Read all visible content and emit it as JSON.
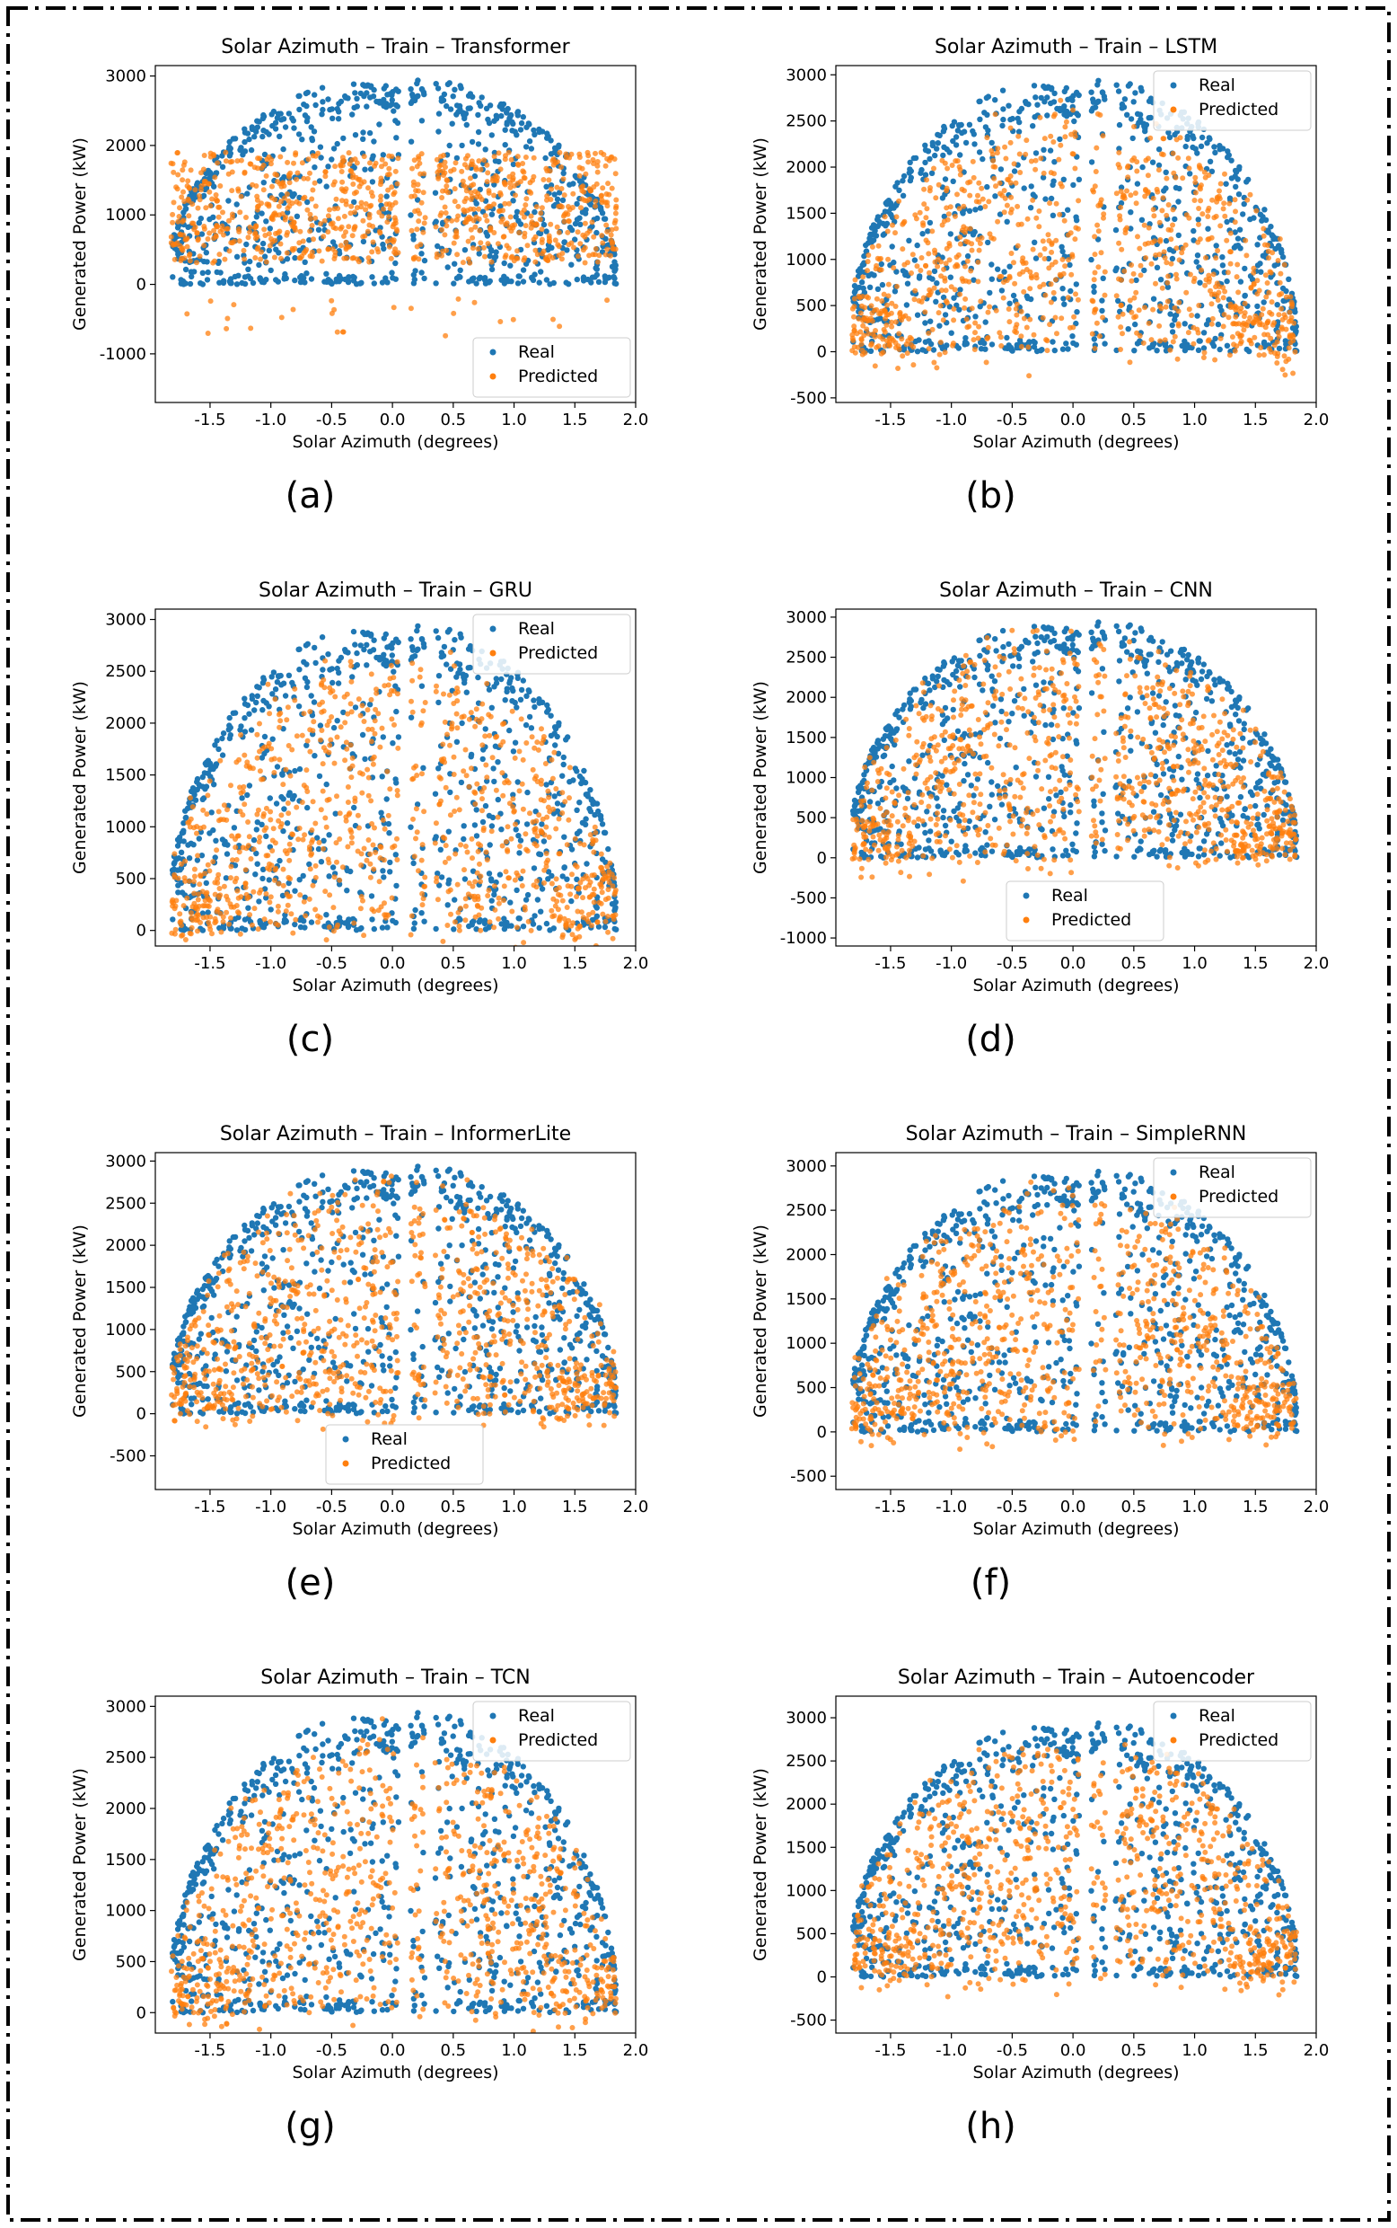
{
  "chart_data": [
    {
      "panel_label": "(a)",
      "type": "scatter",
      "title": "Solar Azimuth – Train – Transformer",
      "xlabel": "Solar Azimuth (degrees)",
      "ylabel": "Generated Power (kW)",
      "xlim": [
        -1.95,
        2.0
      ],
      "ylim": [
        -1700,
        3150
      ],
      "xticks": [
        "-1.5",
        "-1.0",
        "-0.5",
        "0.0",
        "0.5",
        "1.0",
        "1.5",
        "2.0"
      ],
      "xtick_values": [
        -1.5,
        -1.0,
        -0.5,
        0.0,
        0.5,
        1.0,
        1.5,
        2.0
      ],
      "yticks": [
        "-1000",
        "0",
        "1000",
        "2000",
        "3000"
      ],
      "ytick_values": [
        -1000,
        0,
        1000,
        2000,
        3000
      ],
      "legend_position": "lower-right",
      "series": [
        {
          "name": "Real",
          "color": "#1f77b4",
          "pattern": "real"
        },
        {
          "name": "Predicted",
          "color": "#ff7f0e",
          "pattern": "flat_band",
          "band": [
            300,
            1900
          ],
          "seed": 11
        }
      ]
    },
    {
      "panel_label": "(b)",
      "type": "scatter",
      "title": "Solar Azimuth – Train – LSTM",
      "xlabel": "Solar Azimuth (degrees)",
      "ylabel": "Generated Power (kW)",
      "xlim": [
        -1.95,
        2.0
      ],
      "ylim": [
        -550,
        3100
      ],
      "xticks": [
        "-1.5",
        "-1.0",
        "-0.5",
        "0.0",
        "0.5",
        "1.0",
        "1.5",
        "2.0"
      ],
      "xtick_values": [
        -1.5,
        -1.0,
        -0.5,
        0.0,
        0.5,
        1.0,
        1.5,
        2.0
      ],
      "yticks": [
        "-500",
        "0",
        "500",
        "1000",
        "1500",
        "2000",
        "2500",
        "3000"
      ],
      "ytick_values": [
        -500,
        0,
        500,
        1000,
        1500,
        2000,
        2500,
        3000
      ],
      "legend_position": "upper-right",
      "series": [
        {
          "name": "Real",
          "color": "#1f77b4",
          "pattern": "real"
        },
        {
          "name": "Predicted",
          "color": "#ff7f0e",
          "pattern": "dome",
          "scale": 0.85,
          "spread": 350,
          "seed": 12
        }
      ]
    },
    {
      "panel_label": "(c)",
      "type": "scatter",
      "title": "Solar Azimuth – Train – GRU",
      "xlabel": "Solar Azimuth (degrees)",
      "ylabel": "Generated Power (kW)",
      "xlim": [
        -1.95,
        2.0
      ],
      "ylim": [
        -150,
        3100
      ],
      "xticks": [
        "-1.5",
        "-1.0",
        "-0.5",
        "0.0",
        "0.5",
        "1.0",
        "1.5",
        "2.0"
      ],
      "xtick_values": [
        -1.5,
        -1.0,
        -0.5,
        0.0,
        0.5,
        1.0,
        1.5,
        2.0
      ],
      "yticks": [
        "0",
        "500",
        "1000",
        "1500",
        "2000",
        "2500",
        "3000"
      ],
      "ytick_values": [
        0,
        500,
        1000,
        1500,
        2000,
        2500,
        3000
      ],
      "legend_position": "upper-right",
      "series": [
        {
          "name": "Real",
          "color": "#1f77b4",
          "pattern": "real"
        },
        {
          "name": "Predicted",
          "color": "#ff7f0e",
          "pattern": "dome",
          "scale": 0.85,
          "spread": 300,
          "seed": 13
        }
      ]
    },
    {
      "panel_label": "(d)",
      "type": "scatter",
      "title": "Solar Azimuth – Train – CNN",
      "xlabel": "Solar Azimuth (degrees)",
      "ylabel": "Generated Power (kW)",
      "xlim": [
        -1.95,
        2.0
      ],
      "ylim": [
        -1100,
        3100
      ],
      "xticks": [
        "-1.5",
        "-1.0",
        "-0.5",
        "0.0",
        "0.5",
        "1.0",
        "1.5",
        "2.0"
      ],
      "xtick_values": [
        -1.5,
        -1.0,
        -0.5,
        0.0,
        0.5,
        1.0,
        1.5,
        2.0
      ],
      "yticks": [
        "-1000",
        "-500",
        "0",
        "500",
        "1000",
        "1500",
        "2000",
        "2500",
        "3000"
      ],
      "ytick_values": [
        -1000,
        -500,
        0,
        500,
        1000,
        1500,
        2000,
        2500,
        3000
      ],
      "legend_position": "lower-center",
      "series": [
        {
          "name": "Real",
          "color": "#1f77b4",
          "pattern": "real"
        },
        {
          "name": "Predicted",
          "color": "#ff7f0e",
          "pattern": "dome",
          "scale": 0.9,
          "spread": 450,
          "seed": 14
        }
      ]
    },
    {
      "panel_label": "(e)",
      "type": "scatter",
      "title": "Solar Azimuth – Train – InformerLite",
      "xlabel": "Solar Azimuth (degrees)",
      "ylabel": "Generated Power (kW)",
      "xlim": [
        -1.95,
        2.0
      ],
      "ylim": [
        -900,
        3100
      ],
      "xticks": [
        "-1.5",
        "-1.0",
        "-0.5",
        "0.0",
        "0.5",
        "1.0",
        "1.5",
        "2.0"
      ],
      "xtick_values": [
        -1.5,
        -1.0,
        -0.5,
        0.0,
        0.5,
        1.0,
        1.5,
        2.0
      ],
      "yticks": [
        "-500",
        "0",
        "500",
        "1000",
        "1500",
        "2000",
        "2500",
        "3000"
      ],
      "ytick_values": [
        -500,
        0,
        500,
        1000,
        1500,
        2000,
        2500,
        3000
      ],
      "legend_position": "lower-center",
      "series": [
        {
          "name": "Real",
          "color": "#1f77b4",
          "pattern": "real"
        },
        {
          "name": "Predicted",
          "color": "#ff7f0e",
          "pattern": "dome",
          "scale": 0.9,
          "spread": 420,
          "seed": 15
        }
      ]
    },
    {
      "panel_label": "(f)",
      "type": "scatter",
      "title": "Solar Azimuth – Train – SimpleRNN",
      "xlabel": "Solar Azimuth (degrees)",
      "ylabel": "Generated Power (kW)",
      "xlim": [
        -1.95,
        2.0
      ],
      "ylim": [
        -650,
        3150
      ],
      "xticks": [
        "-1.5",
        "-1.0",
        "-0.5",
        "0.0",
        "0.5",
        "1.0",
        "1.5",
        "2.0"
      ],
      "xtick_values": [
        -1.5,
        -1.0,
        -0.5,
        0.0,
        0.5,
        1.0,
        1.5,
        2.0
      ],
      "yticks": [
        "-500",
        "0",
        "500",
        "1000",
        "1500",
        "2000",
        "2500",
        "3000"
      ],
      "ytick_values": [
        -500,
        0,
        500,
        1000,
        1500,
        2000,
        2500,
        3000
      ],
      "legend_position": "upper-right",
      "series": [
        {
          "name": "Real",
          "color": "#1f77b4",
          "pattern": "real"
        },
        {
          "name": "Predicted",
          "color": "#ff7f0e",
          "pattern": "dome",
          "scale": 0.88,
          "spread": 350,
          "seed": 16
        }
      ]
    },
    {
      "panel_label": "(g)",
      "type": "scatter",
      "title": "Solar Azimuth – Train – TCN",
      "xlabel": "Solar Azimuth (degrees)",
      "ylabel": "Generated Power (kW)",
      "xlim": [
        -1.95,
        2.0
      ],
      "ylim": [
        -200,
        3100
      ],
      "xticks": [
        "-1.5",
        "-1.0",
        "-0.5",
        "0.0",
        "0.5",
        "1.0",
        "1.5",
        "2.0"
      ],
      "xtick_values": [
        -1.5,
        -1.0,
        -0.5,
        0.0,
        0.5,
        1.0,
        1.5,
        2.0
      ],
      "yticks": [
        "0",
        "500",
        "1000",
        "1500",
        "2000",
        "2500",
        "3000"
      ],
      "ytick_values": [
        0,
        500,
        1000,
        1500,
        2000,
        2500,
        3000
      ],
      "legend_position": "upper-right",
      "series": [
        {
          "name": "Real",
          "color": "#1f77b4",
          "pattern": "real"
        },
        {
          "name": "Predicted",
          "color": "#ff7f0e",
          "pattern": "dome",
          "scale": 0.88,
          "spread": 320,
          "seed": 17
        }
      ]
    },
    {
      "panel_label": "(h)",
      "type": "scatter",
      "title": "Solar Azimuth – Train – Autoencoder",
      "xlabel": "Solar Azimuth (degrees)",
      "ylabel": "Generated Power (kW)",
      "xlim": [
        -1.95,
        2.0
      ],
      "ylim": [
        -650,
        3250
      ],
      "xticks": [
        "-1.5",
        "-1.0",
        "-0.5",
        "0.0",
        "0.5",
        "1.0",
        "1.5",
        "2.0"
      ],
      "xtick_values": [
        -1.5,
        -1.0,
        -0.5,
        0.0,
        0.5,
        1.0,
        1.5,
        2.0
      ],
      "yticks": [
        "-500",
        "0",
        "500",
        "1000",
        "1500",
        "2000",
        "2500",
        "3000"
      ],
      "ytick_values": [
        -500,
        0,
        500,
        1000,
        1500,
        2000,
        2500,
        3000
      ],
      "legend_position": "upper-right",
      "series": [
        {
          "name": "Real",
          "color": "#1f77b4",
          "pattern": "real"
        },
        {
          "name": "Predicted",
          "color": "#ff7f0e",
          "pattern": "dome",
          "scale": 0.9,
          "spread": 380,
          "seed": 18
        }
      ]
    }
  ]
}
